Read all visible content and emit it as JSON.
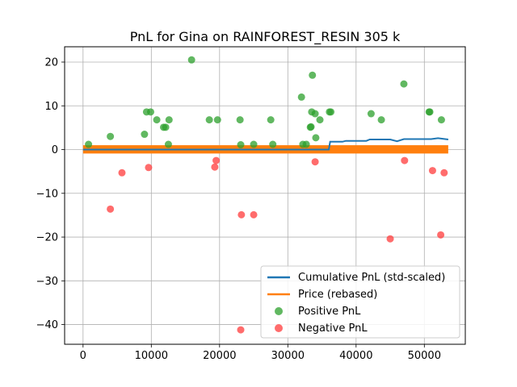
{
  "chart_data": {
    "type": "scatter",
    "title": "PnL for Gina on RAINFOREST_RESIN 305 k",
    "xlabel": "",
    "ylabel": "",
    "xlim": [
      -2700,
      56000
    ],
    "ylim": [
      -44.5,
      23.5
    ],
    "x_ticks": [
      0,
      10000,
      20000,
      30000,
      40000,
      50000
    ],
    "x_tick_labels": [
      "0",
      "10000",
      "20000",
      "30000",
      "40000",
      "50000"
    ],
    "y_ticks": [
      -40,
      -30,
      -20,
      -10,
      0,
      10,
      20
    ],
    "y_tick_labels": [
      "−40",
      "−30",
      "−20",
      "−10",
      "0",
      "10",
      "20"
    ],
    "grid": true,
    "legend_position": "lower-right",
    "colors": {
      "cumulative": "#1f77b4",
      "price": "#ff7f0e",
      "positive": "#2ca02c",
      "negative": "#ff3b3b"
    },
    "series": [
      {
        "name": "Cumulative PnL (std-scaled)",
        "kind": "line",
        "x": [
          0,
          36000,
          36200,
          38000,
          38500,
          41500,
          42000,
          45000,
          46000,
          47000,
          51000,
          52000,
          53500
        ],
        "y": [
          0,
          0,
          1.8,
          1.8,
          2.0,
          2.0,
          2.3,
          2.3,
          1.9,
          2.4,
          2.4,
          2.6,
          2.3
        ]
      },
      {
        "name": "Price (rebased)",
        "kind": "band",
        "x": [
          0,
          53500
        ],
        "y_low": -0.9,
        "y_high": 1.0
      },
      {
        "name": "Positive PnL",
        "kind": "scatter",
        "points": [
          [
            800,
            1.2
          ],
          [
            4000,
            3.0
          ],
          [
            9000,
            3.5
          ],
          [
            9300,
            8.6
          ],
          [
            9900,
            8.6
          ],
          [
            10800,
            6.8
          ],
          [
            11800,
            5.1
          ],
          [
            12100,
            5.1
          ],
          [
            12600,
            6.8
          ],
          [
            12500,
            1.2
          ],
          [
            15900,
            20.5
          ],
          [
            18500,
            6.8
          ],
          [
            19700,
            6.8
          ],
          [
            23000,
            6.8
          ],
          [
            23100,
            1.1
          ],
          [
            25000,
            1.2
          ],
          [
            27500,
            6.8
          ],
          [
            27800,
            1.2
          ],
          [
            32000,
            12.0
          ],
          [
            32200,
            1.2
          ],
          [
            32700,
            1.2
          ],
          [
            33300,
            5.1
          ],
          [
            33400,
            5.2
          ],
          [
            33500,
            8.6
          ],
          [
            33600,
            17.0
          ],
          [
            34000,
            8.2
          ],
          [
            34100,
            2.7
          ],
          [
            34700,
            6.8
          ],
          [
            36100,
            8.6
          ],
          [
            36300,
            8.6
          ],
          [
            42200,
            8.2
          ],
          [
            43700,
            6.8
          ],
          [
            47000,
            15.0
          ],
          [
            50700,
            8.6
          ],
          [
            50800,
            8.6
          ],
          [
            52500,
            6.8
          ]
        ]
      },
      {
        "name": "Negative PnL",
        "kind": "scatter",
        "points": [
          [
            4000,
            -13.6
          ],
          [
            5700,
            -5.3
          ],
          [
            9600,
            -4.1
          ],
          [
            19300,
            -4.0
          ],
          [
            19500,
            -2.5
          ],
          [
            23200,
            -14.9
          ],
          [
            23100,
            -41.2
          ],
          [
            25000,
            -14.9
          ],
          [
            34000,
            -2.8
          ],
          [
            45000,
            -20.4
          ],
          [
            47100,
            -2.5
          ],
          [
            51200,
            -4.8
          ],
          [
            52400,
            -19.5
          ],
          [
            52900,
            -5.3
          ]
        ]
      }
    ]
  }
}
